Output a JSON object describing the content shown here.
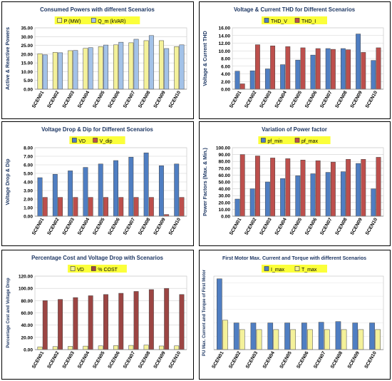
{
  "chart_data": [
    {
      "type": "bar",
      "title": "Consumed Powers with different Scenarios",
      "xlabel": "",
      "ylabel": "Active & Reactive Powers",
      "categories": [
        "SCEN01",
        "SCEN02",
        "SCEN03",
        "SCEN04",
        "SCEN05",
        "SCEN06",
        "SCEN07",
        "SCEN08",
        "SCEN09",
        "SCEN10"
      ],
      "series": [
        {
          "name": "P (MW)",
          "values": [
            20.2,
            21.0,
            22.0,
            23.3,
            24.3,
            25.3,
            26.5,
            27.7,
            27.7,
            24.3
          ],
          "color": "#f4f19a"
        },
        {
          "name": "Q_m (kVAR)",
          "values": [
            19.6,
            20.8,
            22.1,
            23.7,
            25.2,
            26.8,
            28.5,
            30.6,
            23.2,
            25.3
          ],
          "color": "#a3c2e8"
        }
      ],
      "ylim": [
        0,
        35
      ],
      "yticks": [
        "0.00",
        "5.00",
        "10.00",
        "15.00",
        "20.00",
        "25.00",
        "30.00",
        "35.00"
      ],
      "legend": "top"
    },
    {
      "type": "bar",
      "title": "Voltage & Current THD for Different Scenarios",
      "xlabel": "",
      "ylabel": "Voltage & Current THD",
      "categories": [
        "SCEN01",
        "SCEN02",
        "SCEN03",
        "SCEN04",
        "SCEN05",
        "SCEN06",
        "SCEN07",
        "SCEN08",
        "SCEN09",
        "SCEN10"
      ],
      "series": [
        {
          "name": "THD_V",
          "values": [
            4.7,
            4.8,
            5.3,
            6.4,
            7.6,
            8.9,
            10.6,
            10.6,
            14.4,
            7.5
          ],
          "color": "#4f7ec2"
        },
        {
          "name": "THD_I",
          "values": [
            1.4,
            11.6,
            11.3,
            11.1,
            10.8,
            10.6,
            10.4,
            10.3,
            9.6,
            10.8
          ],
          "color": "#bd4f4c"
        }
      ],
      "ylim": [
        0,
        16
      ],
      "yticks": [
        "0.00",
        "2.00",
        "4.00",
        "6.00",
        "8.00",
        "10.00",
        "12.00",
        "14.00",
        "16.00"
      ],
      "legend": "top"
    },
    {
      "type": "bar",
      "title": "Voltage Drop & Dip for Different Scenarios",
      "xlabel": "",
      "ylabel": "Voltage Drop & Dip",
      "categories": [
        "SCEN01",
        "SCEN02",
        "SCEN03",
        "SCEN04",
        "SCEN05",
        "SCEN06",
        "SCEN07",
        "SCEN08",
        "SCEN09",
        "SCEN10"
      ],
      "series": [
        {
          "name": "VD",
          "values": [
            4.5,
            4.9,
            5.3,
            5.7,
            6.1,
            6.5,
            6.9,
            7.4,
            5.9,
            6.1
          ],
          "color": "#4f7ec2"
        },
        {
          "name": "V_dip",
          "values": [
            2.2,
            2.2,
            2.2,
            2.2,
            2.2,
            2.2,
            2.2,
            2.2,
            0.2,
            2.2
          ],
          "color": "#bd4f4c"
        }
      ],
      "ylim": [
        0,
        8
      ],
      "yticks": [
        "0.00",
        "1.00",
        "2.00",
        "3.00",
        "4.00",
        "5.00",
        "6.00",
        "7.00",
        "8.00"
      ],
      "legend": "top"
    },
    {
      "type": "bar",
      "title": "Variation of Power factor",
      "xlabel": "",
      "ylabel": "Power Factors (Max. & Min.)",
      "categories": [
        "SCEN01",
        "SCEN02",
        "SCEN03",
        "SCEN04",
        "SCEN05",
        "SCEN06",
        "SCEN07",
        "SCEN08",
        "SCEN09",
        "SCEN10"
      ],
      "series": [
        {
          "name": "pf_min",
          "values": [
            25,
            40,
            50,
            55,
            59,
            62,
            64,
            65,
            77,
            40
          ],
          "color": "#4f7ec2"
        },
        {
          "name": "pf_max",
          "values": [
            90,
            88,
            85,
            84,
            82,
            81,
            79,
            83,
            83,
            86
          ],
          "color": "#bd4f4c"
        }
      ],
      "ylim": [
        0,
        100
      ],
      "yticks": [
        "0.00",
        "10.00",
        "20.00",
        "30.00",
        "40.00",
        "50.00",
        "60.00",
        "70.00",
        "80.00",
        "90.00",
        "100.00"
      ],
      "legend": "top"
    },
    {
      "type": "bar",
      "title": "Percentage Cost and Voltage Drop with Scenarios",
      "xlabel": "",
      "ylabel": "Percentage Cost and Voltage Drop",
      "categories": [
        "SCEN01",
        "SCEN02",
        "SCEN03",
        "SCEN04",
        "SCEN05",
        "SCEN06",
        "SCEN07",
        "SCEN08",
        "SCEN09",
        "SCEN10"
      ],
      "series": [
        {
          "name": "VD",
          "values": [
            4.5,
            4.9,
            5.3,
            5.7,
            6.1,
            6.5,
            6.9,
            7.4,
            5.9,
            6.1
          ],
          "color": "#f4f19a"
        },
        {
          "name": "% COST",
          "values": [
            80,
            82,
            85,
            88,
            90,
            92,
            95,
            98,
            100,
            90
          ],
          "color": "#9c4543"
        }
      ],
      "ylim": [
        0,
        120
      ],
      "yticks": [
        "0.00",
        "20.00",
        "40.00",
        "60.00",
        "80.00",
        "100.00",
        "120.00"
      ],
      "legend": "top"
    },
    {
      "type": "bar",
      "title": "First Motor Max. Current and Torque with different Scenarios",
      "xlabel": "",
      "ylabel": "PU Max. Current and Torque of First Motor",
      "categories": [
        "SCEN01",
        "SCEN02",
        "SCEN03",
        "SCEN04",
        "SCEN05",
        "SCEN06",
        "SCEN07",
        "SCEN08",
        "SCEN09",
        "SCEN10"
      ],
      "series": [
        {
          "name": "I_max",
          "values": [
            530,
            200,
            200,
            200,
            200,
            200,
            205,
            210,
            200,
            200
          ],
          "color": "#4f7ec2"
        },
        {
          "name": "T_max",
          "values": [
            220,
            150,
            150,
            150,
            150,
            150,
            150,
            150,
            150,
            150
          ],
          "color": "#f4f19a"
        }
      ],
      "ylim": [
        0,
        550
      ],
      "yticks": [],
      "legend": "top"
    }
  ]
}
